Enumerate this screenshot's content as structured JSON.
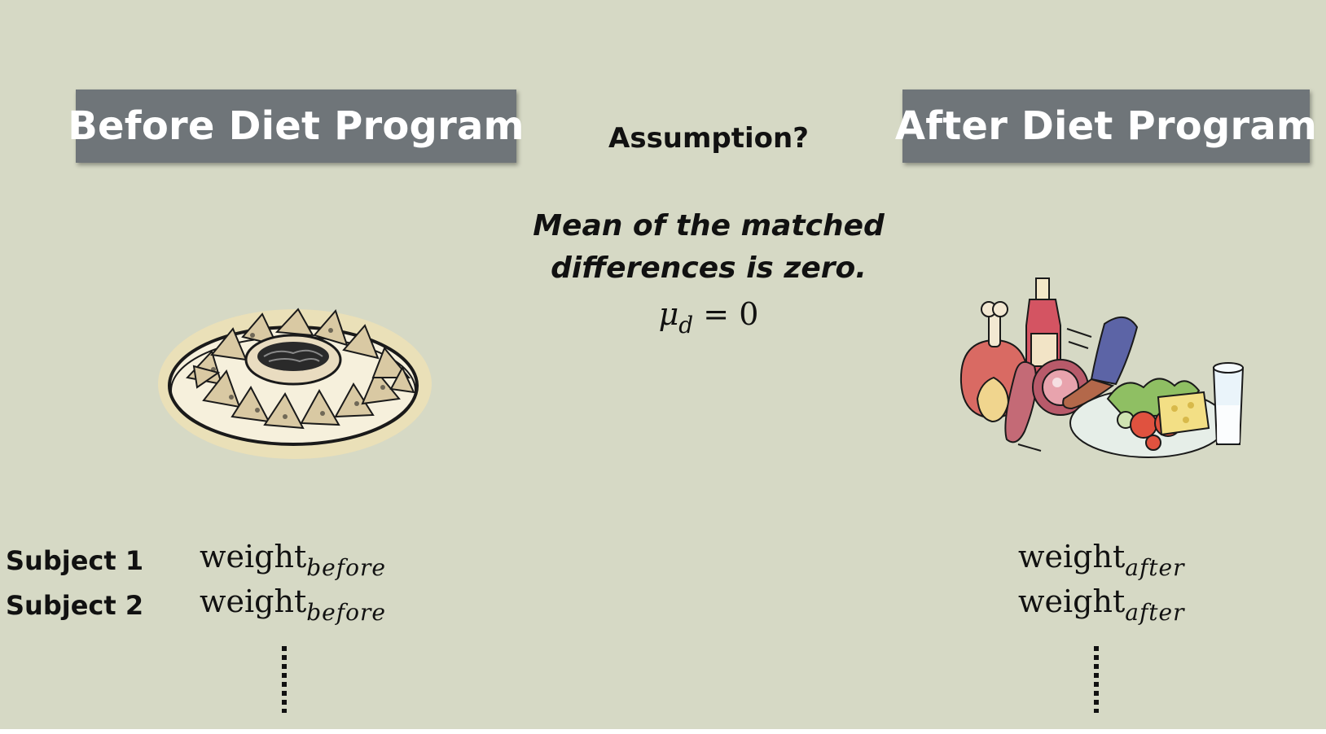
{
  "banners": {
    "before": "Before Diet Program",
    "after": "After Diet Program"
  },
  "assumption": {
    "title": "Assumption?",
    "line1": "Mean of the matched",
    "line2": "differences is zero.",
    "formula_symbol": "μ",
    "formula_sub": "d",
    "formula_rest": " = 0"
  },
  "rows": [
    {
      "subject": "Subject 1",
      "before_main": "weight",
      "before_sub": "before",
      "after_main": "weight",
      "after_sub": "after"
    },
    {
      "subject": "Subject 2",
      "before_main": "weight",
      "before_sub": "before",
      "after_main": "weight",
      "after_sub": "after"
    }
  ],
  "illustrations": {
    "before": "nachos-plate-icon",
    "after": "healthy-meal-icon"
  },
  "colors": {
    "background": "#d6d9c5",
    "banner": "#6f7579",
    "banner_text": "#ffffff"
  }
}
